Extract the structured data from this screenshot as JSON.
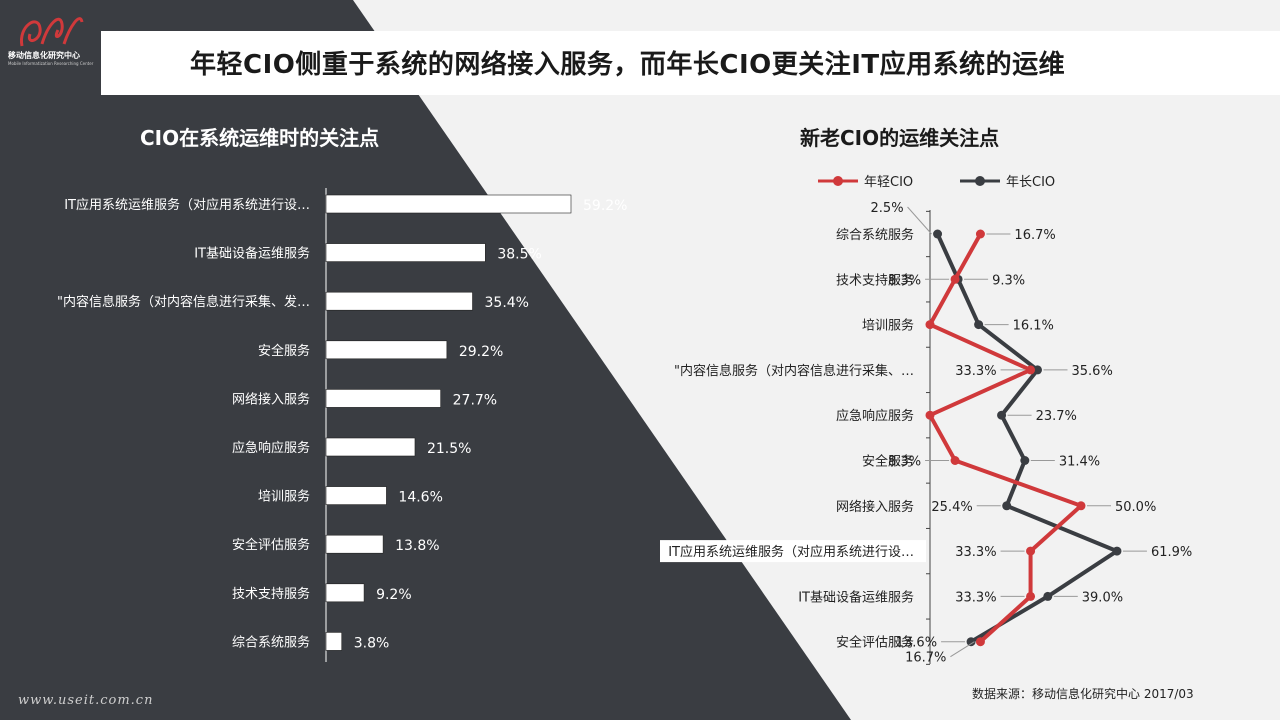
{
  "colors": {
    "dark": "#3a3d42",
    "light": "#f2f2f2",
    "young": "#d0393b",
    "senior": "#3a3d42",
    "bar": "#ffffff"
  },
  "logo": {
    "name": "移动信息化研究中心",
    "sub": "Mobile Informatization Researching Center"
  },
  "page_title": "年轻CIO侧重于系统的网络接入服务，而年长CIO更关注IT应用系统的运维",
  "watermark": "www.useit.com.cn",
  "source": "数据来源：移动信息化研究中心 2017/03",
  "chart_data": [
    {
      "type": "bar",
      "orientation": "horizontal",
      "title": "CIO在系统运维时的关注点",
      "categories": [
        "IT应用系统运维服务（对应用系统进行设…",
        "IT基础设备运维服务",
        "\"内容信息服务（对内容信息进行采集、发…",
        "安全服务",
        "网络接入服务",
        "应急响应服务",
        "培训服务",
        "安全评估服务",
        "技术支持服务",
        "综合系统服务"
      ],
      "values": [
        59.2,
        38.5,
        35.4,
        29.2,
        27.7,
        21.5,
        14.6,
        13.8,
        9.2,
        3.8
      ],
      "value_labels": [
        "59.2%",
        "38.5%",
        "35.4%",
        "29.2%",
        "27.7%",
        "21.5%",
        "14.6%",
        "13.8%",
        "9.2%",
        "3.8%"
      ],
      "unit": "%"
    },
    {
      "type": "line",
      "title": "新老CIO的运维关注点",
      "legend_position": "top",
      "categories": [
        "综合系统服务",
        "技术支持服务",
        "培训服务",
        "\"内容信息服务（对内容信息进行采集、…",
        "应急响应服务",
        "安全服务",
        "网络接入服务",
        "IT应用系统运维服务（对应用系统进行设…",
        "IT基础设备运维服务",
        "安全评估服务"
      ],
      "series": [
        {
          "name": "年轻CIO",
          "values": [
            16.7,
            8.3,
            0,
            33.3,
            0,
            8.3,
            50.0,
            33.3,
            33.3,
            16.7
          ],
          "labels": [
            "16.7%",
            "8.3%",
            "",
            "33.3%",
            "",
            "8.3%",
            "50.0%",
            "33.3%",
            "33.3%",
            "16.7%"
          ]
        },
        {
          "name": "年长CIO",
          "values": [
            2.5,
            9.3,
            16.1,
            35.6,
            23.7,
            31.4,
            25.4,
            61.9,
            39.0,
            13.6
          ],
          "labels": [
            "2.5%",
            "9.3%",
            "16.1%",
            "35.6%",
            "23.7%",
            "31.4%",
            "25.4%",
            "61.9%",
            "39.0%",
            "13.6%"
          ]
        }
      ],
      "xlim": [
        0,
        100
      ]
    }
  ]
}
